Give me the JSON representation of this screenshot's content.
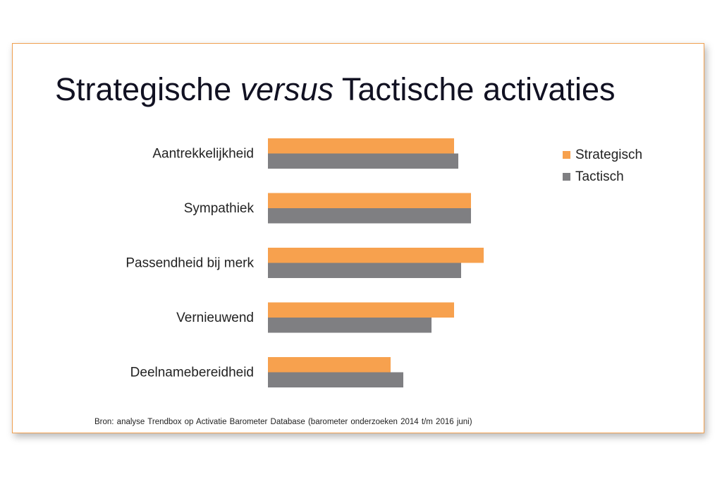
{
  "title": {
    "before": "Strategische ",
    "emphasis": "versus",
    "after": " Tactische activaties"
  },
  "source": "Bron: analyse Trendbox op Activatie Barometer Database (barometer onderzoeken 2014 t/m 2016 juni)",
  "colors": {
    "strategisch": "#f7a14e",
    "tactisch": "#7f7f82",
    "border": "#f0a050"
  },
  "chart_data": {
    "type": "bar",
    "orientation": "horizontal",
    "categories": [
      "Aantrekkelijkheid",
      "Sympathiek",
      "Passendheid bij merk",
      "Vernieuwend",
      "Deelnamebereidheid"
    ],
    "series": [
      {
        "name": "Strategisch",
        "values": [
          66,
          72,
          76.5,
          66,
          43.5
        ]
      },
      {
        "name": "Tactisch",
        "values": [
          67.5,
          72,
          68.5,
          58,
          48
        ]
      }
    ],
    "xlim": [
      0,
      100
    ],
    "grid": false,
    "axis_labels_shown": false,
    "legend_position": "right"
  }
}
